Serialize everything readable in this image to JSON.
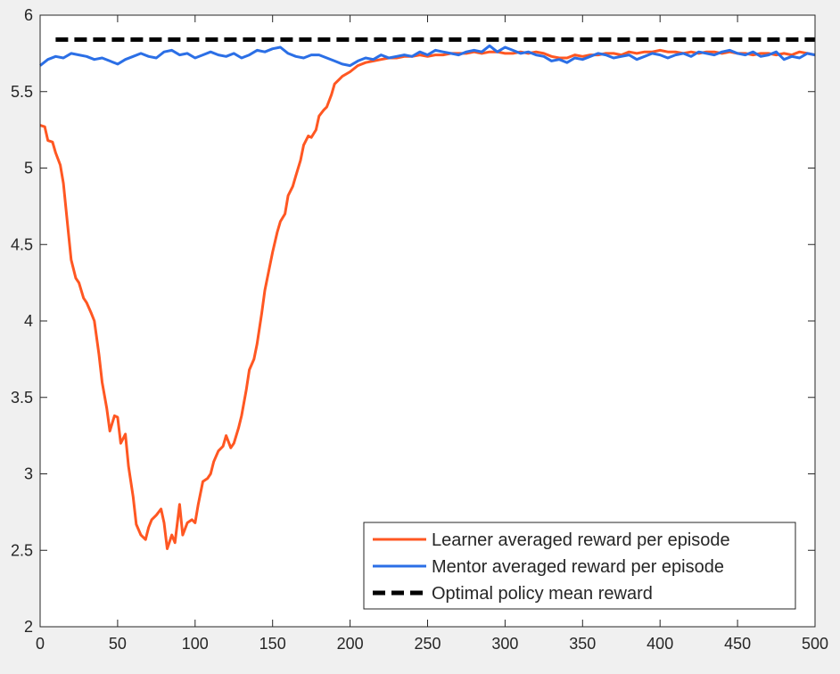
{
  "chart_data": {
    "type": "line",
    "title": "",
    "xlabel": "",
    "ylabel": "",
    "xlim": [
      0,
      500
    ],
    "ylim": [
      2,
      6
    ],
    "xticks": [
      "0",
      "50",
      "100",
      "150",
      "200",
      "250",
      "300",
      "350",
      "400",
      "450",
      "500"
    ],
    "yticks": [
      "2",
      "2.5",
      "3",
      "3.5",
      "4",
      "4.5",
      "5",
      "5.5",
      "6"
    ],
    "grid": false,
    "legend_position": "bottom-right",
    "series": [
      {
        "name": "Learner averaged reward per episode",
        "color": "#ff5722",
        "style": "solid",
        "x": [
          0,
          3,
          5,
          8,
          10,
          13,
          15,
          18,
          20,
          23,
          25,
          28,
          30,
          33,
          35,
          38,
          40,
          43,
          45,
          48,
          50,
          52,
          55,
          57,
          60,
          62,
          65,
          68,
          70,
          72,
          75,
          78,
          80,
          82,
          85,
          87,
          90,
          92,
          95,
          98,
          100,
          102,
          105,
          108,
          110,
          112,
          115,
          118,
          120,
          123,
          125,
          128,
          130,
          133,
          135,
          138,
          140,
          143,
          145,
          148,
          150,
          153,
          155,
          158,
          160,
          163,
          165,
          168,
          170,
          173,
          175,
          178,
          180,
          183,
          185,
          188,
          190,
          195,
          200,
          205,
          210,
          215,
          220,
          225,
          230,
          235,
          240,
          245,
          250,
          255,
          260,
          265,
          270,
          275,
          280,
          285,
          290,
          295,
          300,
          305,
          310,
          315,
          320,
          325,
          330,
          335,
          340,
          345,
          350,
          355,
          360,
          365,
          370,
          375,
          380,
          385,
          390,
          395,
          400,
          405,
          410,
          415,
          420,
          425,
          430,
          435,
          440,
          445,
          450,
          455,
          460,
          465,
          470,
          475,
          480,
          485,
          490,
          495,
          500
        ],
        "y": [
          5.28,
          5.27,
          5.18,
          5.17,
          5.1,
          5.02,
          4.9,
          4.6,
          4.4,
          4.28,
          4.25,
          4.15,
          4.12,
          4.05,
          4.0,
          3.78,
          3.6,
          3.43,
          3.28,
          3.38,
          3.37,
          3.2,
          3.26,
          3.05,
          2.85,
          2.67,
          2.6,
          2.57,
          2.65,
          2.7,
          2.73,
          2.77,
          2.68,
          2.51,
          2.6,
          2.55,
          2.8,
          2.6,
          2.68,
          2.7,
          2.68,
          2.8,
          2.95,
          2.97,
          3.0,
          3.08,
          3.15,
          3.18,
          3.25,
          3.17,
          3.2,
          3.3,
          3.38,
          3.55,
          3.68,
          3.75,
          3.85,
          4.05,
          4.2,
          4.35,
          4.45,
          4.58,
          4.65,
          4.7,
          4.82,
          4.88,
          4.95,
          5.05,
          5.15,
          5.21,
          5.2,
          5.25,
          5.34,
          5.38,
          5.4,
          5.48,
          5.55,
          5.6,
          5.63,
          5.67,
          5.69,
          5.7,
          5.71,
          5.72,
          5.72,
          5.73,
          5.73,
          5.74,
          5.73,
          5.74,
          5.74,
          5.75,
          5.75,
          5.75,
          5.76,
          5.75,
          5.76,
          5.76,
          5.75,
          5.75,
          5.76,
          5.75,
          5.76,
          5.75,
          5.73,
          5.72,
          5.72,
          5.74,
          5.73,
          5.74,
          5.74,
          5.75,
          5.75,
          5.74,
          5.76,
          5.75,
          5.76,
          5.76,
          5.77,
          5.76,
          5.76,
          5.75,
          5.76,
          5.75,
          5.76,
          5.76,
          5.75,
          5.76,
          5.75,
          5.75,
          5.74,
          5.75,
          5.75,
          5.74,
          5.75,
          5.74,
          5.76,
          5.75,
          5.74
        ]
      },
      {
        "name": "Mentor averaged reward per episode",
        "color": "#2b6fe6",
        "style": "solid",
        "x": [
          0,
          5,
          10,
          15,
          20,
          25,
          30,
          35,
          40,
          45,
          50,
          55,
          60,
          65,
          70,
          75,
          80,
          85,
          90,
          95,
          100,
          105,
          110,
          115,
          120,
          125,
          130,
          135,
          140,
          145,
          150,
          155,
          160,
          165,
          170,
          175,
          180,
          185,
          190,
          195,
          200,
          205,
          210,
          215,
          220,
          225,
          230,
          235,
          240,
          245,
          250,
          255,
          260,
          265,
          270,
          275,
          280,
          285,
          290,
          295,
          300,
          305,
          310,
          315,
          320,
          325,
          330,
          335,
          340,
          345,
          350,
          355,
          360,
          365,
          370,
          375,
          380,
          385,
          390,
          395,
          400,
          405,
          410,
          415,
          420,
          425,
          430,
          435,
          440,
          445,
          450,
          455,
          460,
          465,
          470,
          475,
          480,
          485,
          490,
          495,
          500
        ],
        "y": [
          5.67,
          5.71,
          5.73,
          5.72,
          5.75,
          5.74,
          5.73,
          5.71,
          5.72,
          5.7,
          5.68,
          5.71,
          5.73,
          5.75,
          5.73,
          5.72,
          5.76,
          5.77,
          5.74,
          5.75,
          5.72,
          5.74,
          5.76,
          5.74,
          5.73,
          5.75,
          5.72,
          5.74,
          5.77,
          5.76,
          5.78,
          5.79,
          5.75,
          5.73,
          5.72,
          5.74,
          5.74,
          5.72,
          5.7,
          5.68,
          5.67,
          5.7,
          5.72,
          5.71,
          5.74,
          5.72,
          5.73,
          5.74,
          5.73,
          5.76,
          5.74,
          5.77,
          5.76,
          5.75,
          5.74,
          5.76,
          5.77,
          5.76,
          5.8,
          5.76,
          5.79,
          5.77,
          5.75,
          5.76,
          5.74,
          5.73,
          5.7,
          5.71,
          5.69,
          5.72,
          5.71,
          5.73,
          5.75,
          5.74,
          5.72,
          5.73,
          5.74,
          5.71,
          5.73,
          5.75,
          5.74,
          5.72,
          5.74,
          5.75,
          5.73,
          5.76,
          5.75,
          5.74,
          5.76,
          5.77,
          5.75,
          5.74,
          5.76,
          5.73,
          5.74,
          5.76,
          5.71,
          5.73,
          5.72,
          5.75,
          5.74
        ]
      },
      {
        "name": "Optimal policy mean reward",
        "color": "#000000",
        "style": "dashed",
        "x": [
          10,
          500
        ],
        "y": [
          5.84,
          5.84
        ]
      }
    ]
  }
}
